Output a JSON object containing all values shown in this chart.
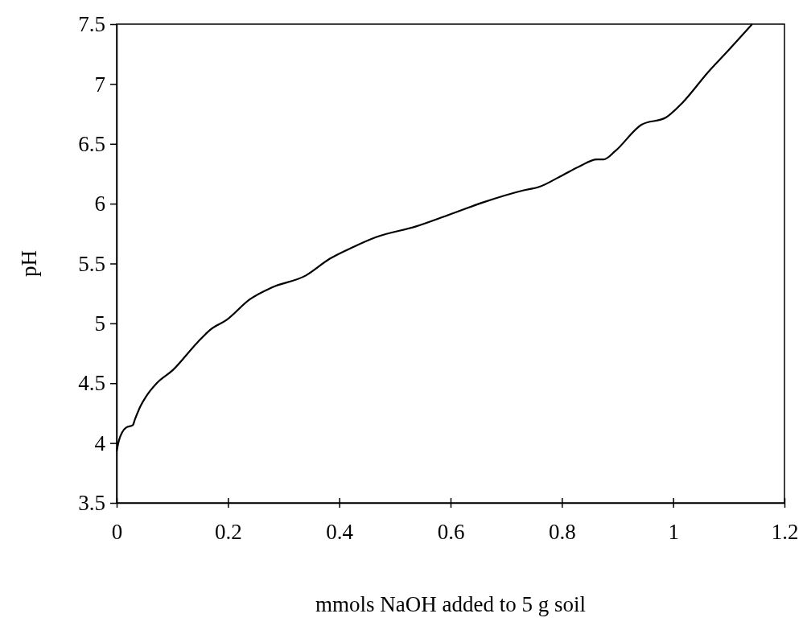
{
  "chart_data": {
    "type": "line",
    "xlabel": "mmols NaOH added to 5 g soil",
    "ylabel": "pH",
    "xlim": [
      0,
      1.2
    ],
    "xticks": [
      0,
      0.2,
      0.4,
      0.6,
      0.8,
      1,
      1.2
    ],
    "ylim": [
      3.5,
      7.5
    ],
    "yticks": [
      3.5,
      4,
      4.5,
      5,
      5.5,
      6,
      6.5,
      7,
      7.5
    ],
    "grid": false,
    "marker": "none",
    "line_style": "solid",
    "series": [
      {
        "color": "#000000",
        "x": [
          0,
          0.004,
          0.017,
          0.029,
          0.033,
          0.043,
          0.053,
          0.072,
          0.101,
          0.145,
          0.169,
          0.198,
          0.239,
          0.279,
          0.34,
          0.383,
          0.426,
          0.466,
          0.538,
          0.593,
          0.658,
          0.73,
          0.759,
          0.802,
          0.831,
          0.863,
          0.875,
          0.896,
          0.943,
          0.987,
          1.016,
          1.063,
          1.099,
          1.142
        ],
        "values": [
          3.93,
          4.02,
          4.13,
          4.15,
          4.2,
          4.31,
          4.39,
          4.5,
          4.61,
          4.84,
          4.95,
          5.03,
          5.2,
          5.3,
          5.4,
          5.54,
          5.64,
          5.72,
          5.81,
          5.9,
          6.01,
          6.11,
          6.14,
          6.24,
          6.31,
          6.37,
          6.37,
          6.44,
          6.66,
          6.72,
          6.84,
          7.1,
          7.28,
          7.5
        ]
      }
    ]
  }
}
